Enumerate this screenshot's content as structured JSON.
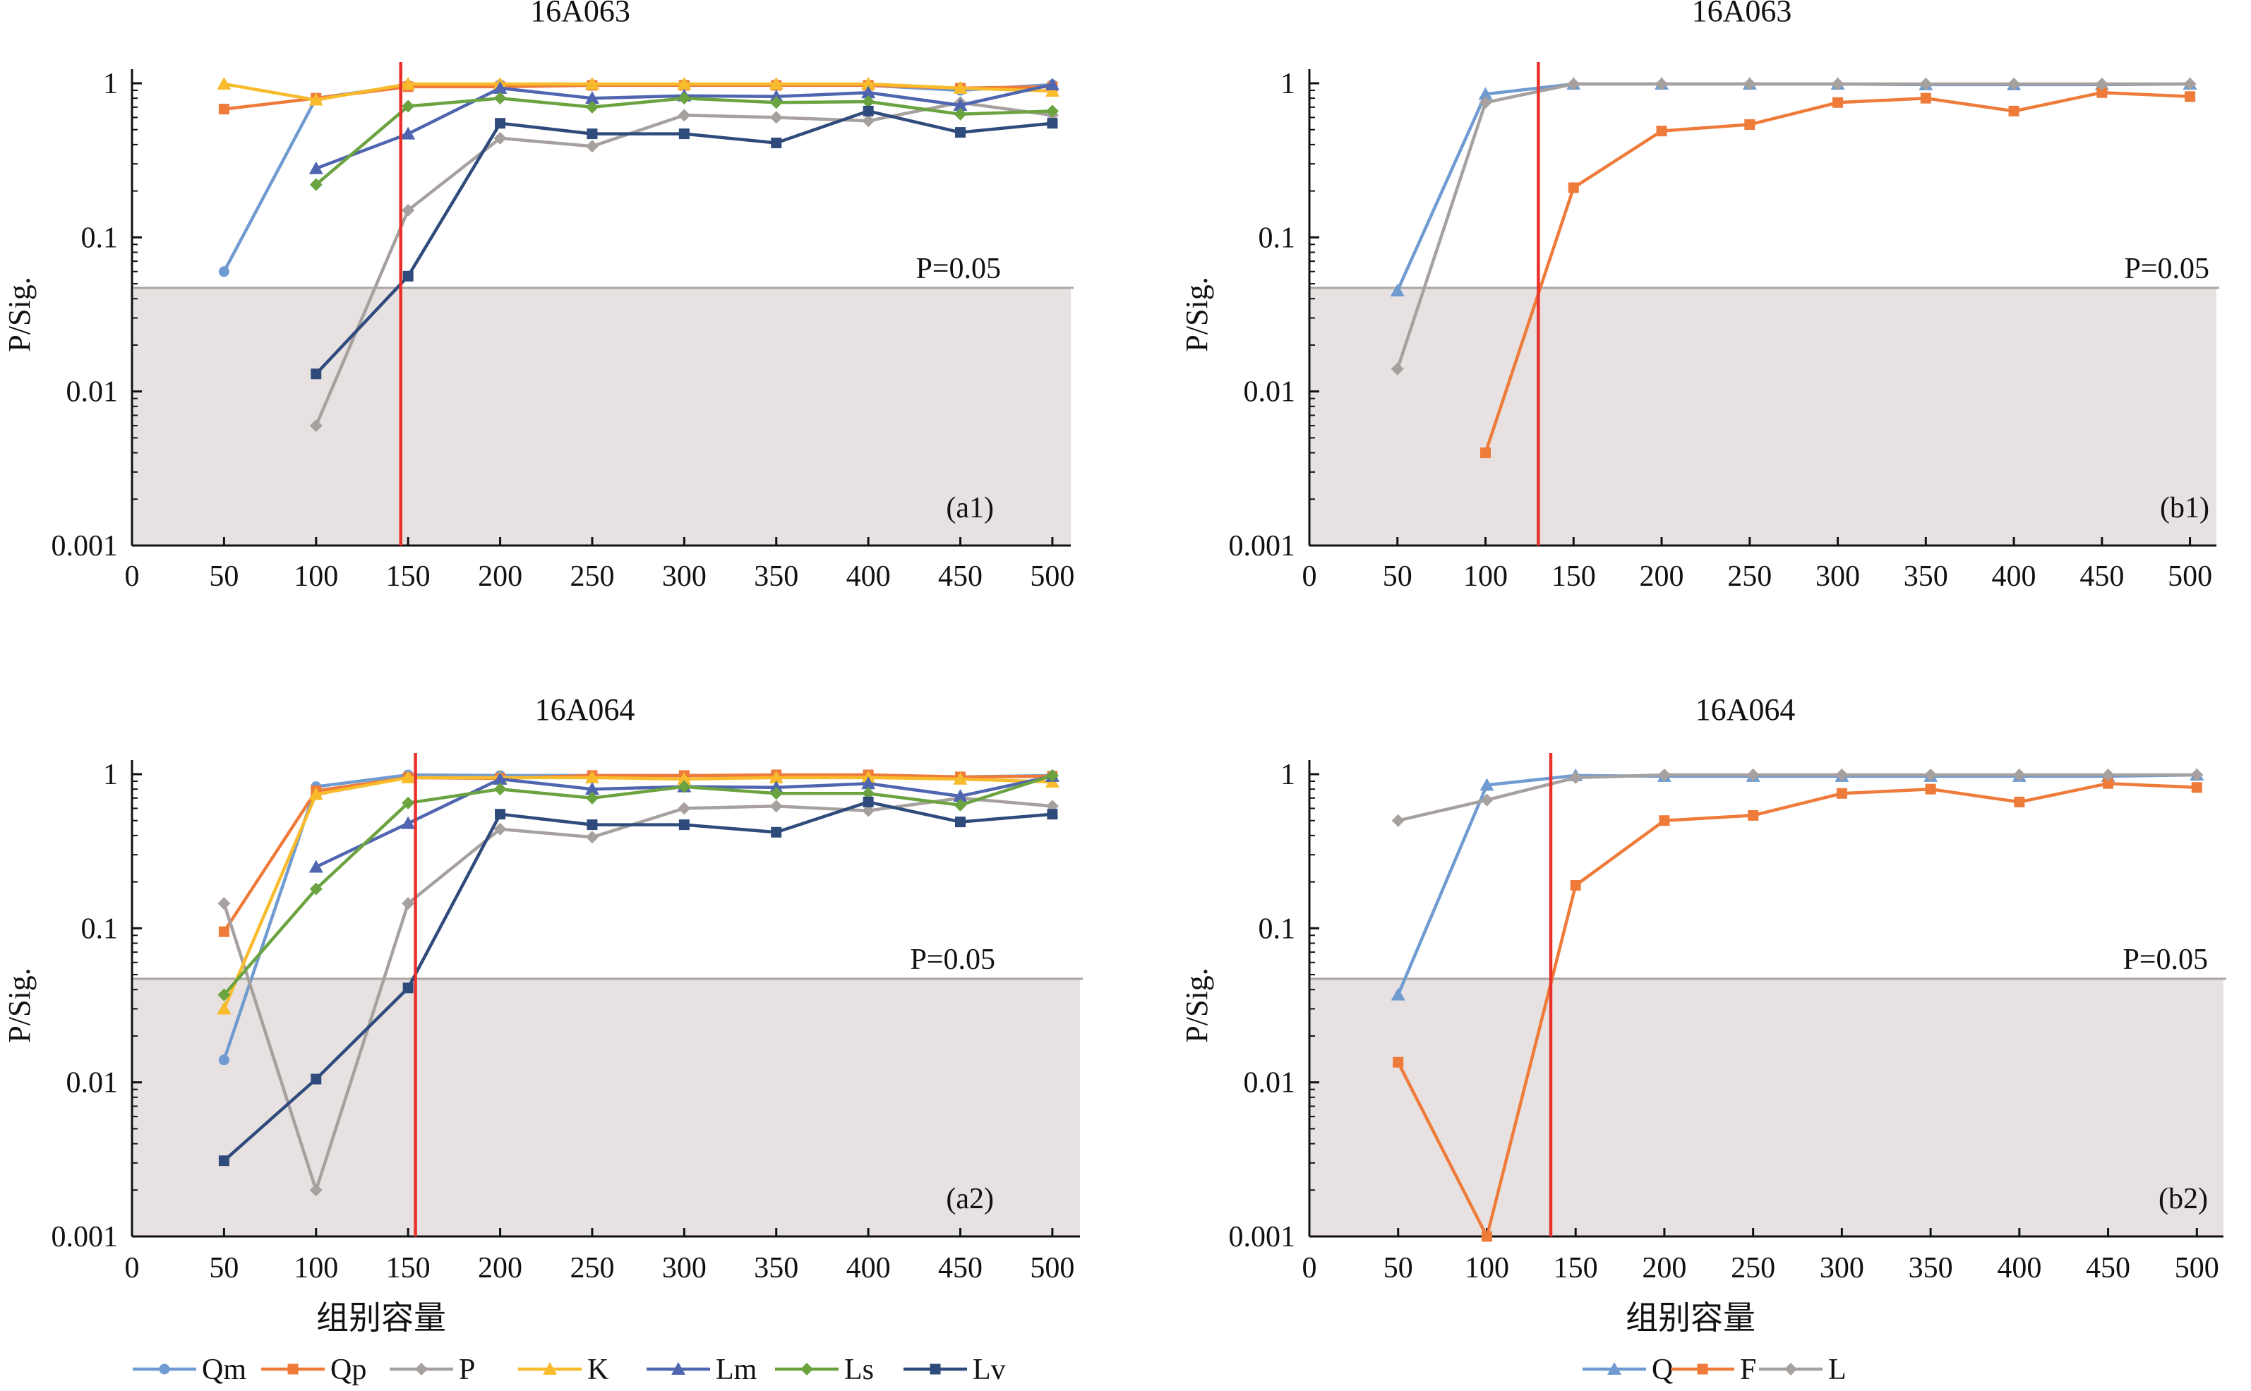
{
  "figure": {
    "xlabel_bottom": "组别容量",
    "colors": {
      "Qm": "#6f9bd1",
      "Qp": "#ee7b3a",
      "P": "#a6a09e",
      "K": "#f8bb2b",
      "Lm": "#4f65b0",
      "Ls": "#6aa33f",
      "Lv": "#2f4b7c",
      "Q": "#6f9bd1",
      "F": "#ee7b3a",
      "L": "#a6a09e",
      "redline": "#e8312b",
      "pline": "#a9a5a3",
      "shade": "#e7e2e1"
    },
    "legend_a": [
      "Qm",
      "Qp",
      "P",
      "K",
      "Lm",
      "Ls",
      "Lv"
    ],
    "legend_b": [
      "Q",
      "F",
      "L"
    ]
  },
  "chart_data": [
    {
      "id": "a1",
      "type": "line",
      "title": "16A063",
      "tag": "(a1)",
      "ylabel": "P/Sig.",
      "yscale": "log",
      "ylim": [
        0.001,
        1
      ],
      "xlim": [
        0,
        510
      ],
      "xticks": [
        0,
        50,
        100,
        150,
        200,
        250,
        300,
        350,
        400,
        450,
        500
      ],
      "yticks": [
        {
          "v": 0.001,
          "label": "0.001"
        },
        {
          "v": 0.01,
          "label": "0.01"
        },
        {
          "v": 0.1,
          "label": "0.1"
        },
        {
          "v": 1,
          "label": "1"
        }
      ],
      "p_line": 0.047,
      "p_label": "P=0.05",
      "red_x": 146,
      "series": [
        {
          "name": "Qm",
          "marker": "circle",
          "x": [
            50,
            100,
            150,
            200,
            250,
            300,
            350,
            400,
            450,
            500
          ],
          "values": [
            0.06,
            0.8,
            0.97,
            0.98,
            0.98,
            0.98,
            0.98,
            0.97,
            0.9,
            0.98
          ]
        },
        {
          "name": "Qp",
          "marker": "square",
          "x": [
            50,
            100,
            150,
            200,
            250,
            300,
            350,
            400,
            450,
            500
          ],
          "values": [
            0.68,
            0.8,
            0.95,
            0.95,
            0.97,
            0.97,
            0.97,
            0.97,
            0.93,
            0.95
          ]
        },
        {
          "name": "P",
          "marker": "diamond",
          "x": [
            100,
            150,
            200,
            250,
            300,
            350,
            400,
            450,
            500
          ],
          "values": [
            0.006,
            0.15,
            0.44,
            0.39,
            0.62,
            0.6,
            0.57,
            0.75,
            0.62
          ]
        },
        {
          "name": "K",
          "marker": "triangle",
          "x": [
            50,
            100,
            150,
            200,
            250,
            300,
            350,
            400,
            450,
            500
          ],
          "values": [
            0.99,
            0.78,
            0.99,
            0.99,
            0.99,
            0.99,
            0.99,
            0.99,
            0.93,
            0.89
          ]
        },
        {
          "name": "Lm",
          "marker": "triangle",
          "x": [
            100,
            150,
            200,
            250,
            300,
            350,
            400,
            450,
            500
          ],
          "values": [
            0.28,
            0.47,
            0.93,
            0.8,
            0.83,
            0.82,
            0.87,
            0.72,
            0.98
          ]
        },
        {
          "name": "Ls",
          "marker": "diamond",
          "x": [
            100,
            150,
            200,
            250,
            300,
            350,
            400,
            450,
            500
          ],
          "values": [
            0.22,
            0.71,
            0.8,
            0.7,
            0.8,
            0.75,
            0.76,
            0.63,
            0.66
          ]
        },
        {
          "name": "Lv",
          "marker": "square",
          "x": [
            100,
            150,
            200,
            250,
            300,
            350,
            400,
            450,
            500
          ],
          "values": [
            0.013,
            0.056,
            0.55,
            0.47,
            0.47,
            0.41,
            0.66,
            0.48,
            0.55
          ]
        }
      ]
    },
    {
      "id": "b1",
      "type": "line",
      "title": "16A063",
      "tag": "(b1)",
      "ylabel": "P/Sig.",
      "yscale": "log",
      "ylim": [
        0.001,
        1
      ],
      "xlim": [
        0,
        515
      ],
      "xticks": [
        0,
        50,
        100,
        150,
        200,
        250,
        300,
        350,
        400,
        450,
        500
      ],
      "yticks": [
        {
          "v": 0.001,
          "label": "0.001"
        },
        {
          "v": 0.01,
          "label": "0.01"
        },
        {
          "v": 0.1,
          "label": "0.1"
        },
        {
          "v": 1,
          "label": "1"
        }
      ],
      "p_line": 0.047,
      "p_label": "P=0.05",
      "red_x": 130,
      "series": [
        {
          "name": "Q",
          "marker": "triangle",
          "x": [
            50,
            100,
            150,
            200,
            250,
            300,
            350,
            400,
            450,
            500
          ],
          "values": [
            0.045,
            0.85,
            0.99,
            0.99,
            0.99,
            0.99,
            0.98,
            0.98,
            0.98,
            0.99
          ]
        },
        {
          "name": "F",
          "marker": "square",
          "x": [
            100,
            150,
            200,
            250,
            300,
            350,
            400,
            450,
            500
          ],
          "values": [
            0.004,
            0.21,
            0.49,
            0.54,
            0.75,
            0.8,
            0.66,
            0.87,
            0.82
          ]
        },
        {
          "name": "L",
          "marker": "diamond",
          "x": [
            50,
            100,
            150,
            200,
            250,
            300,
            350,
            400,
            450,
            500
          ],
          "values": [
            0.014,
            0.75,
            0.99,
            0.99,
            0.99,
            0.99,
            0.99,
            0.99,
            0.99,
            0.99
          ]
        }
      ]
    },
    {
      "id": "a2",
      "type": "line",
      "title": "16A064",
      "tag": "(a2)",
      "ylabel": "P/Sig.",
      "yscale": "log",
      "ylim": [
        0.001,
        1
      ],
      "xlim": [
        0,
        515
      ],
      "xticks": [
        0,
        50,
        100,
        150,
        200,
        250,
        300,
        350,
        400,
        450,
        500
      ],
      "yticks": [
        {
          "v": 0.001,
          "label": "0.001"
        },
        {
          "v": 0.01,
          "label": "0.01"
        },
        {
          "v": 0.1,
          "label": "0.1"
        },
        {
          "v": 1,
          "label": "1"
        }
      ],
      "p_line": 0.047,
      "p_label": "P=0.05",
      "red_x": 154,
      "series": [
        {
          "name": "Qm",
          "marker": "circle",
          "x": [
            50,
            100,
            150,
            200,
            250,
            300,
            350,
            400,
            450,
            500
          ],
          "values": [
            0.014,
            0.83,
            0.99,
            0.98,
            0.98,
            0.98,
            0.98,
            0.97,
            0.96,
            0.98
          ]
        },
        {
          "name": "Qp",
          "marker": "square",
          "x": [
            50,
            100,
            150,
            200,
            250,
            300,
            350,
            400,
            450,
            500
          ],
          "values": [
            0.095,
            0.78,
            0.95,
            0.94,
            0.98,
            0.98,
            0.99,
            0.99,
            0.96,
            0.97
          ]
        },
        {
          "name": "P",
          "marker": "diamond",
          "x": [
            50,
            100,
            150,
            200,
            250,
            300,
            350,
            400,
            450,
            500
          ],
          "values": [
            0.145,
            0.002,
            0.145,
            0.44,
            0.39,
            0.6,
            0.62,
            0.58,
            0.7,
            0.62
          ]
        },
        {
          "name": "K",
          "marker": "triangle",
          "x": [
            50,
            100,
            150,
            200,
            250,
            300,
            350,
            400,
            450,
            500
          ],
          "values": [
            0.03,
            0.74,
            0.95,
            0.95,
            0.95,
            0.93,
            0.95,
            0.95,
            0.93,
            0.89
          ]
        },
        {
          "name": "Lm",
          "marker": "triangle",
          "x": [
            100,
            150,
            200,
            250,
            300,
            350,
            400,
            450,
            500
          ],
          "values": [
            0.25,
            0.48,
            0.93,
            0.8,
            0.83,
            0.82,
            0.87,
            0.72,
            0.97
          ]
        },
        {
          "name": "Ls",
          "marker": "diamond",
          "x": [
            50,
            100,
            150,
            200,
            250,
            300,
            350,
            400,
            450,
            500
          ],
          "values": [
            0.037,
            0.18,
            0.65,
            0.8,
            0.7,
            0.83,
            0.75,
            0.75,
            0.63,
            0.98
          ]
        },
        {
          "name": "Lv",
          "marker": "square",
          "x": [
            50,
            100,
            150,
            200,
            250,
            300,
            350,
            400,
            450,
            500
          ],
          "values": [
            0.0031,
            0.0105,
            0.041,
            0.55,
            0.47,
            0.47,
            0.42,
            0.66,
            0.49,
            0.55
          ]
        }
      ]
    },
    {
      "id": "b2",
      "type": "line",
      "title": "16A064",
      "tag": "(b2)",
      "ylabel": "P/Sig.",
      "yscale": "log",
      "ylim": [
        0.001,
        1
      ],
      "xlim": [
        0,
        515
      ],
      "xticks": [
        0,
        50,
        100,
        150,
        200,
        250,
        300,
        350,
        400,
        450,
        500
      ],
      "yticks": [
        {
          "v": 0.001,
          "label": "0.001"
        },
        {
          "v": 0.01,
          "label": "0.01"
        },
        {
          "v": 0.1,
          "label": "0.1"
        },
        {
          "v": 1,
          "label": "1"
        }
      ],
      "p_line": 0.047,
      "p_label": "P=0.05",
      "red_x": 136,
      "series": [
        {
          "name": "Q",
          "marker": "triangle",
          "x": [
            50,
            100,
            150,
            200,
            250,
            300,
            350,
            400,
            450,
            500
          ],
          "values": [
            0.037,
            0.85,
            0.98,
            0.97,
            0.97,
            0.97,
            0.97,
            0.97,
            0.97,
            0.99
          ]
        },
        {
          "name": "F",
          "marker": "square",
          "x": [
            50,
            100,
            150,
            200,
            250,
            300,
            350,
            400,
            450,
            500
          ],
          "values": [
            0.0135,
            0.001,
            0.19,
            0.5,
            0.54,
            0.75,
            0.8,
            0.66,
            0.87,
            0.82
          ]
        },
        {
          "name": "L",
          "marker": "diamond",
          "x": [
            50,
            100,
            150,
            200,
            250,
            300,
            350,
            400,
            450,
            500
          ],
          "values": [
            0.5,
            0.68,
            0.95,
            0.99,
            0.99,
            0.99,
            0.99,
            0.99,
            0.99,
            0.99
          ]
        }
      ]
    }
  ]
}
